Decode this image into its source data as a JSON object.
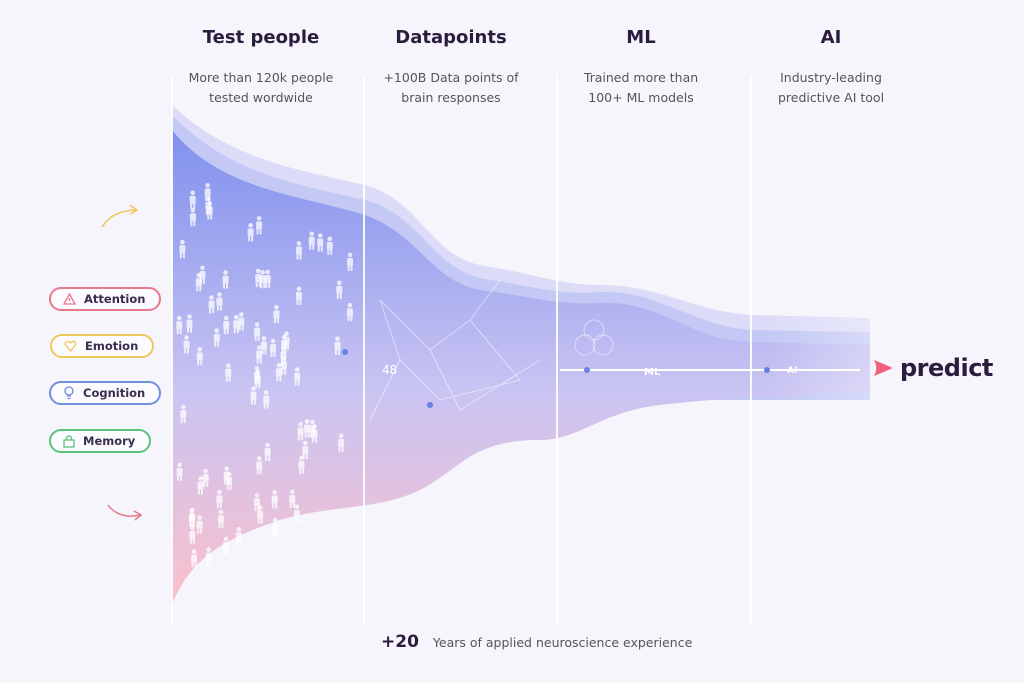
{
  "columns": [
    {
      "title": "Test people",
      "desc1": "More than 120k people",
      "desc2": "tested wordwide"
    },
    {
      "title": "Datapoints",
      "desc1": "+100B Data points of",
      "desc2": "brain responses"
    },
    {
      "title": "ML",
      "desc1": "Trained more than",
      "desc2": "100+ ML models"
    },
    {
      "title": "AI",
      "desc1": "Industry-leading",
      "desc2": "predictive AI tool"
    }
  ],
  "pills": [
    {
      "label": "Attention",
      "icon": "warning-triangle-icon",
      "color": "#e77a8a"
    },
    {
      "label": "Emotion",
      "icon": "heart-icon",
      "color": "#efc85a"
    },
    {
      "label": "Cognition",
      "icon": "lightbulb-icon",
      "color": "#6f8fe0"
    },
    {
      "label": "Memory",
      "icon": "lock-icon",
      "color": "#5cc47a"
    }
  ],
  "funnel_labels": {
    "datapoint": "48",
    "ml": "ML",
    "ai": "AI"
  },
  "logo": {
    "text": "predict",
    "color": "#f0607a"
  },
  "footer": {
    "number": "+20",
    "text": "Years of applied neuroscience experience"
  },
  "colors": {
    "funnel_top": "#7f90ee",
    "funnel_bottom": "#fbc0cc",
    "arrow_top": "#efc85a",
    "arrow_bottom": "#e77a8a"
  }
}
